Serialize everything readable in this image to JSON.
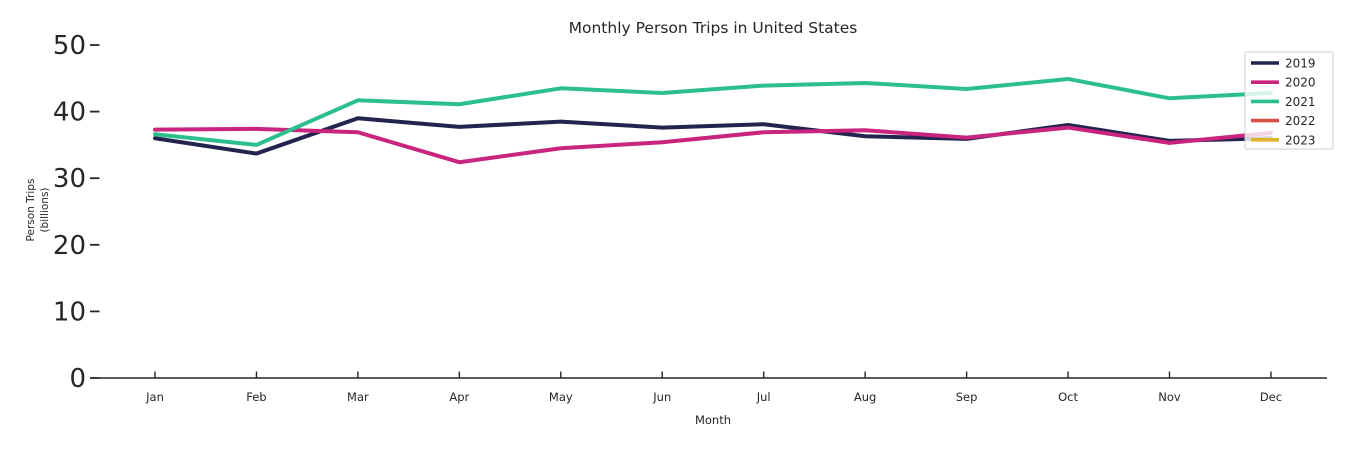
{
  "chart_data": {
    "type": "line",
    "title": "Monthly Person Trips in United States",
    "xlabel": "Month",
    "ylabel": "Person Trips (billions)",
    "ylabel_lines": [
      "Person Trips",
      "(billions)"
    ],
    "categories": [
      "Jan",
      "Feb",
      "Mar",
      "Apr",
      "May",
      "Jun",
      "Jul",
      "Aug",
      "Sep",
      "Oct",
      "Nov",
      "Dec"
    ],
    "y_ticks": [
      0,
      10,
      20,
      30,
      40,
      50
    ],
    "ylim": [
      0,
      52
    ],
    "grid": false,
    "legend_position": "upper right",
    "axis_color": "#262626",
    "legend_border_color": "#cccccc",
    "series": [
      {
        "name": "2019",
        "color": "#23234f",
        "values": [
          36.0,
          33.7,
          39.0,
          37.7,
          38.5,
          37.6,
          38.1,
          36.3,
          35.9,
          38.0,
          35.6,
          36.0
        ]
      },
      {
        "name": "2020",
        "color": "#c9247e",
        "values": [
          37.3,
          37.4,
          36.9,
          32.4,
          34.5,
          35.4,
          36.9,
          37.2,
          36.1,
          37.6,
          35.3,
          36.8
        ]
      },
      {
        "name": "2021",
        "color": "#2cbf8e",
        "values": [
          36.6,
          35.0,
          41.7,
          41.1,
          43.5,
          42.8,
          43.9,
          44.3,
          43.4,
          44.9,
          42.0,
          42.8
        ]
      },
      {
        "name": "2022",
        "color": "#dc4e45",
        "values": []
      },
      {
        "name": "2023",
        "color": "#dfb32a",
        "values": []
      }
    ]
  }
}
